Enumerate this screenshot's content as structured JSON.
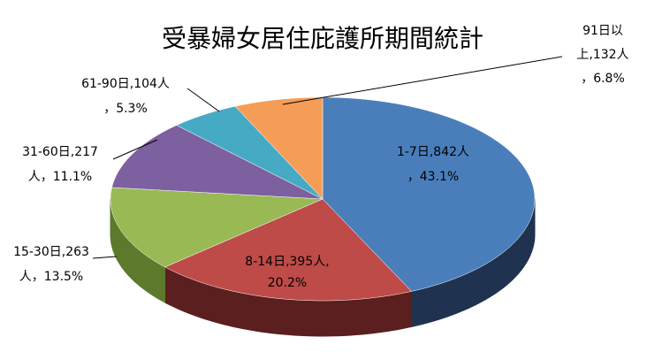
{
  "chart_data": {
    "type": "pie3d",
    "title": "受暴婦女居住庇護所期間統計",
    "values": [
      842,
      395,
      263,
      217,
      104,
      132
    ],
    "value_labels": [
      [
        "1-7日,842人",
        "，43.1%"
      ],
      [
        "8-14日,395人,",
        "20.2%"
      ],
      [
        "15-30日,263",
        "人，13.5%"
      ],
      [
        "31-60日,217",
        "人，11.1%"
      ],
      [
        "61-90日,104人",
        "，5.3%"
      ],
      [
        "91日以",
        "上,132人",
        "，6.8%"
      ]
    ],
    "colors": [
      "#4a7ebb",
      "#be4b48",
      "#98b954",
      "#7d60a0",
      "#46aac5",
      "#f59d56"
    ],
    "side_colors": [
      "#1f3350",
      "#5a1f1e",
      "#5d7a2c",
      "#4b3566",
      "#23707f",
      "#a55f22"
    ]
  }
}
